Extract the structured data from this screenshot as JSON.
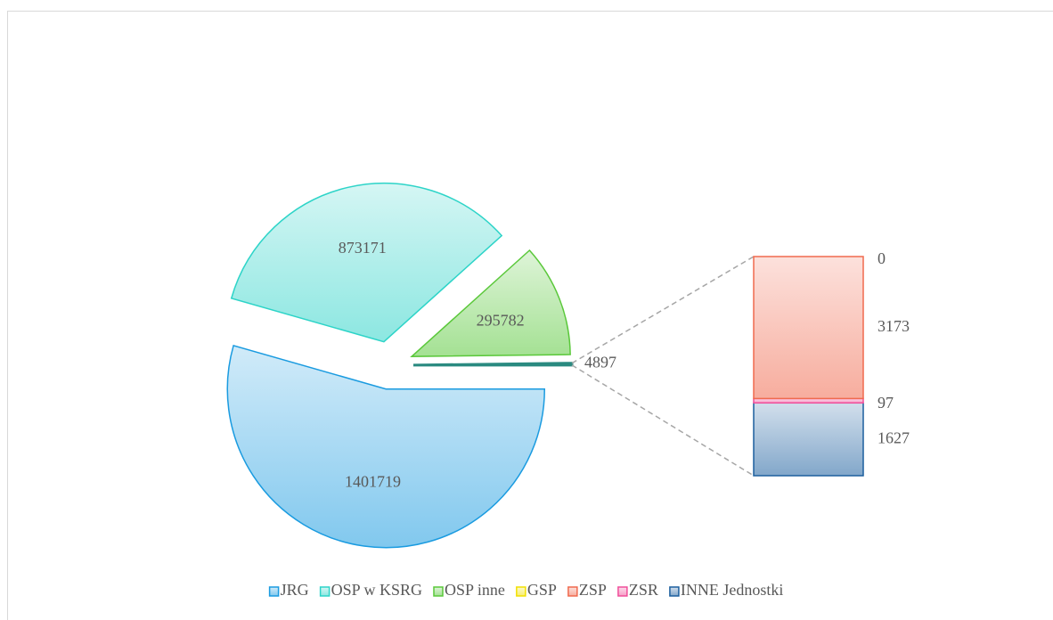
{
  "chart_data": {
    "type": "pie_of_bar",
    "pie": {
      "categories": [
        "JRG",
        "OSP w KSRG",
        "OSP inne"
      ],
      "values": [
        1401719,
        873171,
        295782
      ],
      "colors": [
        "#1a9be0",
        "#2dd4c8",
        "#5ac83a"
      ]
    },
    "other_value": 4897,
    "other_color": "#2a8a80",
    "bar": {
      "categories": [
        "GSP",
        "ZSP",
        "ZSR",
        "INNE Jednostki"
      ],
      "values": [
        0,
        3173,
        97,
        1627
      ],
      "colors": [
        "#f2e000",
        "#f06a4e",
        "#f04e9a",
        "#1c5f9e"
      ]
    },
    "legend": "bottom"
  }
}
